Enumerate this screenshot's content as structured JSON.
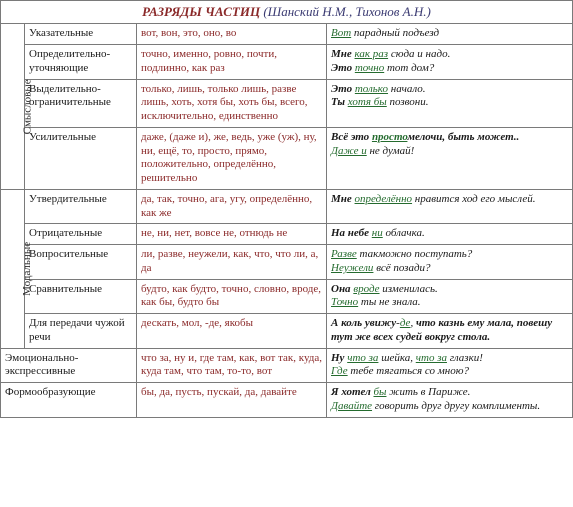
{
  "title_main": "РАЗРЯДЫ ЧАСТИЦ",
  "title_authors": "(Шанский Н.М., Тихонов А.Н.)",
  "group_smysl": "Смысловые",
  "group_modal": "Модальные",
  "rows": [
    {
      "cat": "Указательные",
      "parts": "вот, вон, это, оно, во",
      "ex": "<span class='hl'>Вот</span> парадный подъезд"
    },
    {
      "cat": "Определительно-уточняющие",
      "parts": "точно, именно, ровно, почти, подлинно, как раз",
      "ex": "<b>Мне</b> <span class='hl'>как раз</span> сюда и надо.<br><b>Это</b> <span class='hl'>точно</span> тот дом?"
    },
    {
      "cat": "Выделительно-ограничительные",
      "parts": "только, лишь, только лишь, разве лишь, хоть, хотя бы, хоть бы, всего, исключительно, единственно",
      "ex": "<b>Это</b> <span class='hl'>только</span> начало.<br><b>Ты</b> <span class='hl'>хотя бы</span> позвони."
    },
    {
      "cat": "Усилительные",
      "parts": "даже, (даже и), же, ведь, уже (уж), ну, ни, ещё, то, просто, прямо, положительно, определённо, решительно",
      "ex": "<b>Всё это <span class='hl'>просто</span>мелочи, быть может..</b><br><span class='hl'>Даже и</span> не думай!"
    },
    {
      "cat": "Утвердительные",
      "parts": "да, так, точно, ага, угу, определённо, как же",
      "ex": "<b>Мне</b> <span class='hl'>определённо</span> нравится ход его мыслей."
    },
    {
      "cat": "Отрицательные",
      "parts": "не, ни, нет, вовсе не, отнюдь не",
      "ex": "<b>На небе</b> <span class='hl'>ни</span> облачка."
    },
    {
      "cat": "Вопросительные",
      "parts": "ли, разве, неужели, как, что, что ли, а, да",
      "ex": "<span class='hl'>Разве</span> такможно поступать?<br><span class='hl'>Неужели</span> всё позади?"
    },
    {
      "cat": "Сравнительные",
      "parts": "будто, как будто, точно, словно, вроде, как бы, будто бы",
      "ex": "<b>Она</b> <span class='hl'>вроде</span> изменилась.<br><span class='hl'>Точно</span> ты не знала."
    },
    {
      "cat": "Для передачи чужой речи",
      "parts": "дескать, мол, -де, якобы",
      "ex": "<b>А коль увижу</b>-<span class='hl'>де</span>, <b>что казнь ему мала, повешу тут же всех судей вокруг стола.</b>"
    },
    {
      "cat": "Эмоционально-экспрессивные",
      "parts": "что за, ну и, где там, как, вот так, куда, куда там, что там, то-то, вот",
      "ex": "<b>Ну</b> <span class='hl'>что за</span> шейка, <span class='hl'>что за</span> глазки!<br><span class='hl'>Где</span> тебе тягаться со мною?"
    },
    {
      "cat": "Формообразующие",
      "parts": "бы, да, пусть, пускай, да, давайте",
      "ex": "<b>Я хотел</b> <span class='hl'>бы</span> жить в Париже.<br><span class='hl'>Давайте</span> говорить друг другу комплименты."
    }
  ]
}
